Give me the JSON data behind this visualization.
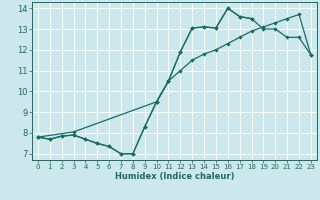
{
  "xlabel": "Humidex (Indice chaleur)",
  "bg_color": "#cde8ec",
  "grid_color": "#ffffff",
  "line_color": "#1a6b63",
  "xlim": [
    -0.5,
    23.5
  ],
  "ylim": [
    6.7,
    14.3
  ],
  "xticks": [
    0,
    1,
    2,
    3,
    4,
    5,
    6,
    7,
    8,
    9,
    10,
    11,
    12,
    13,
    14,
    15,
    16,
    17,
    18,
    19,
    20,
    21,
    22,
    23
  ],
  "yticks": [
    7,
    8,
    9,
    10,
    11,
    12,
    13,
    14
  ],
  "line1_x": [
    0,
    1,
    2,
    3,
    4,
    5,
    6,
    7,
    8,
    9,
    10,
    11,
    12,
    13,
    14,
    15,
    16,
    17,
    18
  ],
  "line1_y": [
    7.8,
    7.7,
    7.85,
    7.9,
    7.7,
    7.5,
    7.35,
    7.0,
    7.0,
    8.3,
    9.5,
    10.5,
    11.9,
    13.05,
    13.1,
    13.05,
    14.0,
    13.6,
    13.5
  ],
  "line2_x": [
    0,
    1,
    2,
    3,
    4,
    5,
    6,
    7,
    8,
    9,
    10,
    11,
    12,
    13,
    14,
    15,
    16,
    17,
    18,
    19,
    20,
    21,
    22,
    23
  ],
  "line2_y": [
    7.8,
    7.7,
    7.85,
    7.9,
    7.7,
    7.5,
    7.35,
    7.0,
    7.0,
    8.3,
    9.5,
    10.5,
    11.9,
    13.05,
    13.1,
    13.05,
    14.0,
    13.6,
    13.5,
    13.0,
    13.0,
    12.6,
    12.6,
    11.75
  ],
  "line3_x": [
    0,
    3,
    10,
    11,
    12,
    13,
    14,
    15,
    16,
    17,
    18,
    19,
    20,
    21,
    22,
    23
  ],
  "line3_y": [
    7.8,
    8.05,
    9.5,
    10.5,
    11.0,
    11.5,
    11.8,
    12.0,
    12.3,
    12.6,
    12.9,
    13.1,
    13.3,
    13.5,
    13.7,
    11.75
  ]
}
